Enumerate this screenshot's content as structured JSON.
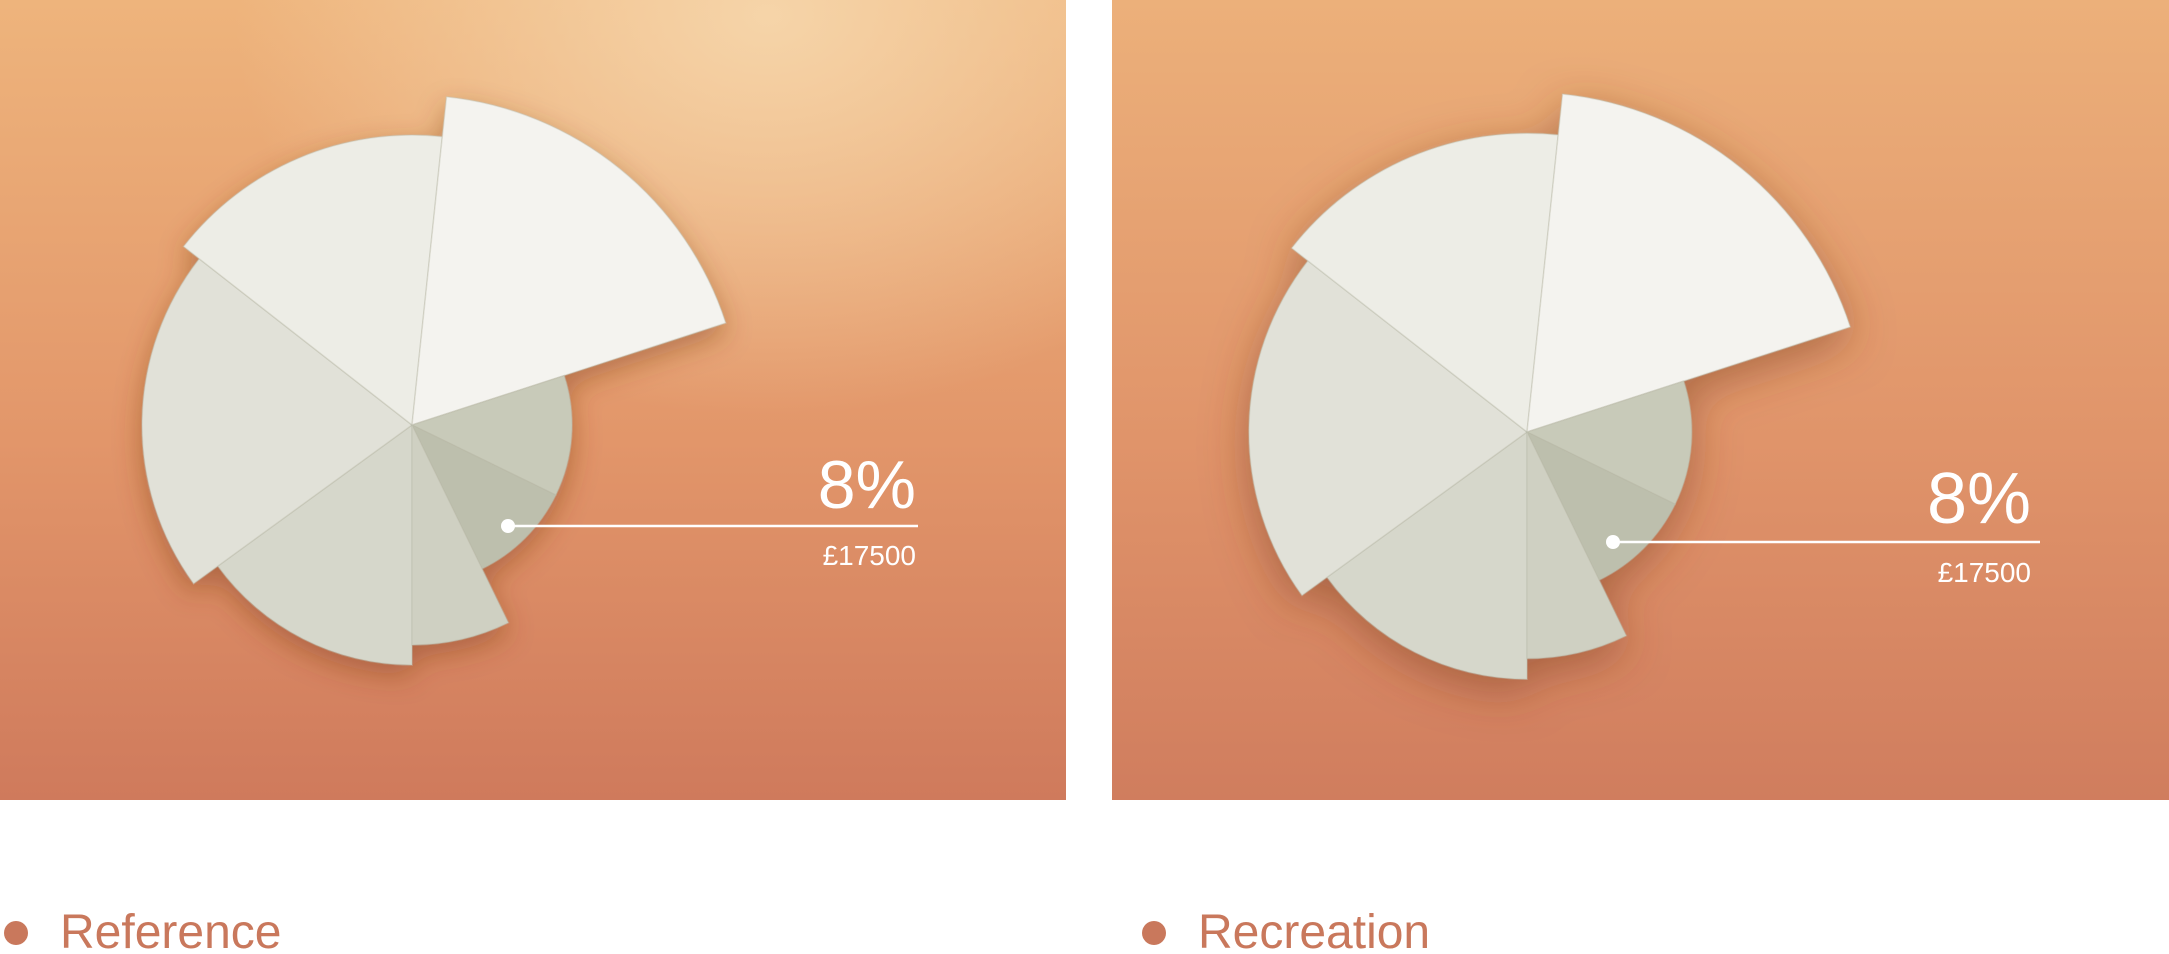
{
  "chart_data": {
    "type": "pie",
    "callout": {
      "percent_label": "8%",
      "value_label": "£17500"
    }
  },
  "captions": {
    "left": "Reference",
    "right": "Recreation"
  },
  "colors": {
    "accent": "#c9785c",
    "bg_top": "#eeb37b",
    "bg_bottom": "#cf7b5c",
    "bg_highlight": "#f3cda0",
    "text_light": "#ffffff"
  }
}
